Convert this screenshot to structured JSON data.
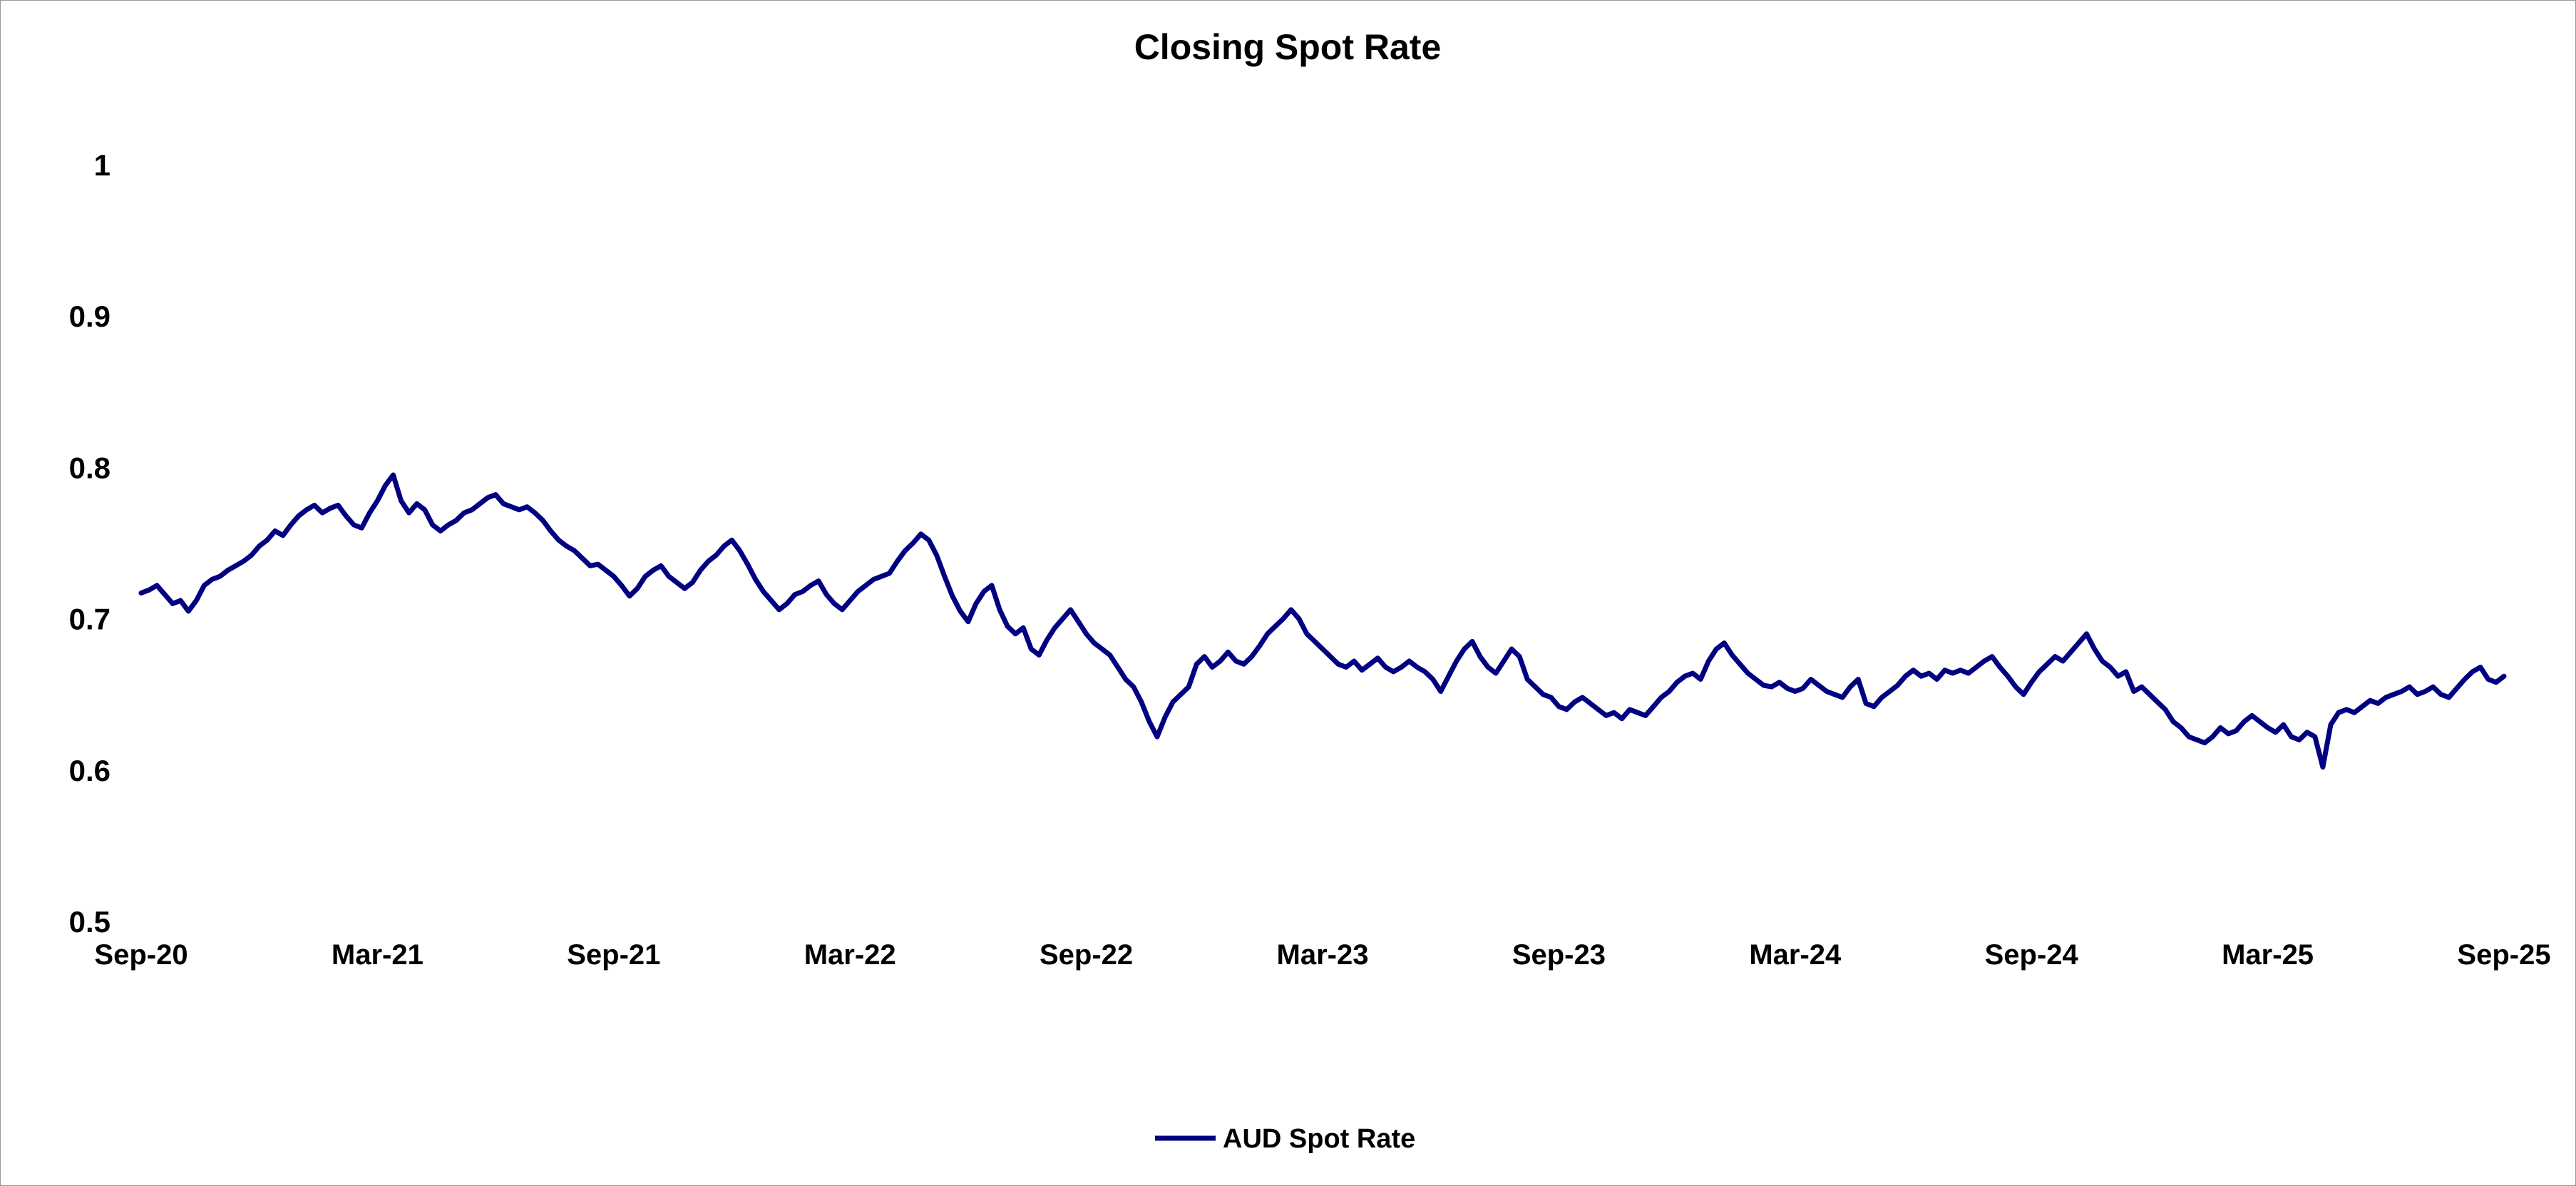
{
  "chart_data": {
    "type": "line",
    "title": "Closing Spot Rate",
    "xlabel": "",
    "ylabel": "",
    "ylim": [
      0.5,
      1.0
    ],
    "yticks": [
      {
        "value": 0.5,
        "label": "0.5"
      },
      {
        "value": 0.6,
        "label": "0.6"
      },
      {
        "value": 0.7,
        "label": "0.7"
      },
      {
        "value": 0.8,
        "label": "0.8"
      },
      {
        "value": 0.9,
        "label": "0.9"
      },
      {
        "value": 1.0,
        "label": "1"
      }
    ],
    "xlim": [
      0,
      60
    ],
    "xticks": [
      {
        "value": 0,
        "label": "Sep-20"
      },
      {
        "value": 6,
        "label": "Mar-21"
      },
      {
        "value": 12,
        "label": "Sep-21"
      },
      {
        "value": 18,
        "label": "Mar-22"
      },
      {
        "value": 24,
        "label": "Sep-22"
      },
      {
        "value": 30,
        "label": "Mar-23"
      },
      {
        "value": 36,
        "label": "Sep-23"
      },
      {
        "value": 42,
        "label": "Mar-24"
      },
      {
        "value": 48,
        "label": "Sep-24"
      },
      {
        "value": 54,
        "label": "Mar-25"
      },
      {
        "value": 60,
        "label": "Sep-25"
      }
    ],
    "legend": {
      "position": "bottom",
      "entries": [
        "AUD Spot Rate"
      ]
    },
    "grid": false,
    "series": [
      {
        "name": "AUD Spot Rate",
        "color": "#000080",
        "x_unit": "months since Sep-20",
        "points": [
          [
            0.0,
            0.717
          ],
          [
            0.2,
            0.719
          ],
          [
            0.4,
            0.722
          ],
          [
            0.6,
            0.716
          ],
          [
            0.8,
            0.71
          ],
          [
            1.0,
            0.712
          ],
          [
            1.2,
            0.705
          ],
          [
            1.4,
            0.712
          ],
          [
            1.6,
            0.722
          ],
          [
            1.8,
            0.726
          ],
          [
            2.0,
            0.728
          ],
          [
            2.2,
            0.732
          ],
          [
            2.4,
            0.735
          ],
          [
            2.6,
            0.738
          ],
          [
            2.8,
            0.742
          ],
          [
            3.0,
            0.748
          ],
          [
            3.2,
            0.752
          ],
          [
            3.4,
            0.758
          ],
          [
            3.6,
            0.755
          ],
          [
            3.8,
            0.762
          ],
          [
            4.0,
            0.768
          ],
          [
            4.2,
            0.772
          ],
          [
            4.4,
            0.775
          ],
          [
            4.6,
            0.77
          ],
          [
            4.8,
            0.773
          ],
          [
            5.0,
            0.775
          ],
          [
            5.2,
            0.768
          ],
          [
            5.4,
            0.762
          ],
          [
            5.6,
            0.76
          ],
          [
            5.8,
            0.77
          ],
          [
            6.0,
            0.778
          ],
          [
            6.2,
            0.788
          ],
          [
            6.4,
            0.795
          ],
          [
            6.6,
            0.778
          ],
          [
            6.8,
            0.77
          ],
          [
            7.0,
            0.776
          ],
          [
            7.2,
            0.772
          ],
          [
            7.4,
            0.762
          ],
          [
            7.6,
            0.758
          ],
          [
            7.8,
            0.762
          ],
          [
            8.0,
            0.765
          ],
          [
            8.2,
            0.77
          ],
          [
            8.4,
            0.772
          ],
          [
            8.6,
            0.776
          ],
          [
            8.8,
            0.78
          ],
          [
            9.0,
            0.782
          ],
          [
            9.2,
            0.776
          ],
          [
            9.4,
            0.774
          ],
          [
            9.6,
            0.772
          ],
          [
            9.8,
            0.774
          ],
          [
            10.0,
            0.77
          ],
          [
            10.2,
            0.765
          ],
          [
            10.4,
            0.758
          ],
          [
            10.6,
            0.752
          ],
          [
            10.8,
            0.748
          ],
          [
            11.0,
            0.745
          ],
          [
            11.2,
            0.74
          ],
          [
            11.4,
            0.735
          ],
          [
            11.6,
            0.736
          ],
          [
            11.8,
            0.732
          ],
          [
            12.0,
            0.728
          ],
          [
            12.2,
            0.722
          ],
          [
            12.4,
            0.715
          ],
          [
            12.6,
            0.72
          ],
          [
            12.8,
            0.728
          ],
          [
            13.0,
            0.732
          ],
          [
            13.2,
            0.735
          ],
          [
            13.4,
            0.728
          ],
          [
            13.6,
            0.724
          ],
          [
            13.8,
            0.72
          ],
          [
            14.0,
            0.724
          ],
          [
            14.2,
            0.732
          ],
          [
            14.4,
            0.738
          ],
          [
            14.6,
            0.742
          ],
          [
            14.8,
            0.748
          ],
          [
            15.0,
            0.752
          ],
          [
            15.2,
            0.745
          ],
          [
            15.4,
            0.736
          ],
          [
            15.6,
            0.726
          ],
          [
            15.8,
            0.718
          ],
          [
            16.0,
            0.712
          ],
          [
            16.2,
            0.706
          ],
          [
            16.4,
            0.71
          ],
          [
            16.6,
            0.716
          ],
          [
            16.8,
            0.718
          ],
          [
            17.0,
            0.722
          ],
          [
            17.2,
            0.725
          ],
          [
            17.4,
            0.716
          ],
          [
            17.6,
            0.71
          ],
          [
            17.8,
            0.706
          ],
          [
            18.0,
            0.712
          ],
          [
            18.2,
            0.718
          ],
          [
            18.4,
            0.722
          ],
          [
            18.6,
            0.726
          ],
          [
            18.8,
            0.728
          ],
          [
            19.0,
            0.73
          ],
          [
            19.2,
            0.738
          ],
          [
            19.4,
            0.745
          ],
          [
            19.6,
            0.75
          ],
          [
            19.8,
            0.756
          ],
          [
            20.0,
            0.752
          ],
          [
            20.2,
            0.742
          ],
          [
            20.4,
            0.728
          ],
          [
            20.6,
            0.715
          ],
          [
            20.8,
            0.705
          ],
          [
            21.0,
            0.698
          ],
          [
            21.2,
            0.71
          ],
          [
            21.4,
            0.718
          ],
          [
            21.6,
            0.722
          ],
          [
            21.8,
            0.706
          ],
          [
            22.0,
            0.695
          ],
          [
            22.2,
            0.69
          ],
          [
            22.4,
            0.694
          ],
          [
            22.6,
            0.68
          ],
          [
            22.8,
            0.676
          ],
          [
            23.0,
            0.686
          ],
          [
            23.2,
            0.694
          ],
          [
            23.4,
            0.7
          ],
          [
            23.6,
            0.706
          ],
          [
            23.8,
            0.698
          ],
          [
            24.0,
            0.69
          ],
          [
            24.2,
            0.684
          ],
          [
            24.4,
            0.68
          ],
          [
            24.6,
            0.676
          ],
          [
            24.8,
            0.668
          ],
          [
            25.0,
            0.66
          ],
          [
            25.2,
            0.655
          ],
          [
            25.4,
            0.645
          ],
          [
            25.6,
            0.632
          ],
          [
            25.8,
            0.622
          ],
          [
            26.0,
            0.635
          ],
          [
            26.2,
            0.645
          ],
          [
            26.4,
            0.65
          ],
          [
            26.6,
            0.655
          ],
          [
            26.8,
            0.67
          ],
          [
            27.0,
            0.675
          ],
          [
            27.2,
            0.668
          ],
          [
            27.4,
            0.672
          ],
          [
            27.6,
            0.678
          ],
          [
            27.8,
            0.672
          ],
          [
            28.0,
            0.67
          ],
          [
            28.2,
            0.675
          ],
          [
            28.4,
            0.682
          ],
          [
            28.6,
            0.69
          ],
          [
            28.8,
            0.695
          ],
          [
            29.0,
            0.7
          ],
          [
            29.2,
            0.706
          ],
          [
            29.4,
            0.7
          ],
          [
            29.6,
            0.69
          ],
          [
            29.8,
            0.685
          ],
          [
            30.0,
            0.68
          ],
          [
            30.2,
            0.675
          ],
          [
            30.4,
            0.67
          ],
          [
            30.6,
            0.668
          ],
          [
            30.8,
            0.672
          ],
          [
            31.0,
            0.666
          ],
          [
            31.2,
            0.67
          ],
          [
            31.4,
            0.674
          ],
          [
            31.6,
            0.668
          ],
          [
            31.8,
            0.665
          ],
          [
            32.0,
            0.668
          ],
          [
            32.2,
            0.672
          ],
          [
            32.4,
            0.668
          ],
          [
            32.6,
            0.665
          ],
          [
            32.8,
            0.66
          ],
          [
            33.0,
            0.652
          ],
          [
            33.2,
            0.662
          ],
          [
            33.4,
            0.672
          ],
          [
            33.6,
            0.68
          ],
          [
            33.8,
            0.685
          ],
          [
            34.0,
            0.675
          ],
          [
            34.2,
            0.668
          ],
          [
            34.4,
            0.664
          ],
          [
            34.6,
            0.672
          ],
          [
            34.8,
            0.68
          ],
          [
            35.0,
            0.675
          ],
          [
            35.2,
            0.66
          ],
          [
            35.4,
            0.655
          ],
          [
            35.6,
            0.65
          ],
          [
            35.8,
            0.648
          ],
          [
            36.0,
            0.642
          ],
          [
            36.2,
            0.64
          ],
          [
            36.4,
            0.645
          ],
          [
            36.6,
            0.648
          ],
          [
            36.8,
            0.644
          ],
          [
            37.0,
            0.64
          ],
          [
            37.2,
            0.636
          ],
          [
            37.4,
            0.638
          ],
          [
            37.6,
            0.634
          ],
          [
            37.8,
            0.64
          ],
          [
            38.0,
            0.638
          ],
          [
            38.2,
            0.636
          ],
          [
            38.4,
            0.642
          ],
          [
            38.6,
            0.648
          ],
          [
            38.8,
            0.652
          ],
          [
            39.0,
            0.658
          ],
          [
            39.2,
            0.662
          ],
          [
            39.4,
            0.664
          ],
          [
            39.6,
            0.66
          ],
          [
            39.8,
            0.672
          ],
          [
            40.0,
            0.68
          ],
          [
            40.2,
            0.684
          ],
          [
            40.4,
            0.676
          ],
          [
            40.6,
            0.67
          ],
          [
            40.8,
            0.664
          ],
          [
            41.0,
            0.66
          ],
          [
            41.2,
            0.656
          ],
          [
            41.4,
            0.655
          ],
          [
            41.6,
            0.658
          ],
          [
            41.8,
            0.654
          ],
          [
            42.0,
            0.652
          ],
          [
            42.2,
            0.654
          ],
          [
            42.4,
            0.66
          ],
          [
            42.6,
            0.656
          ],
          [
            42.8,
            0.652
          ],
          [
            43.0,
            0.65
          ],
          [
            43.2,
            0.648
          ],
          [
            43.4,
            0.655
          ],
          [
            43.6,
            0.66
          ],
          [
            43.8,
            0.644
          ],
          [
            44.0,
            0.642
          ],
          [
            44.2,
            0.648
          ],
          [
            44.4,
            0.652
          ],
          [
            44.6,
            0.656
          ],
          [
            44.8,
            0.662
          ],
          [
            45.0,
            0.666
          ],
          [
            45.2,
            0.662
          ],
          [
            45.4,
            0.664
          ],
          [
            45.6,
            0.66
          ],
          [
            45.8,
            0.666
          ],
          [
            46.0,
            0.664
          ],
          [
            46.2,
            0.666
          ],
          [
            46.4,
            0.664
          ],
          [
            46.6,
            0.668
          ],
          [
            46.8,
            0.672
          ],
          [
            47.0,
            0.675
          ],
          [
            47.2,
            0.668
          ],
          [
            47.4,
            0.662
          ],
          [
            47.6,
            0.655
          ],
          [
            47.8,
            0.65
          ],
          [
            48.0,
            0.658
          ],
          [
            48.2,
            0.665
          ],
          [
            48.4,
            0.67
          ],
          [
            48.6,
            0.675
          ],
          [
            48.8,
            0.672
          ],
          [
            49.0,
            0.678
          ],
          [
            49.2,
            0.684
          ],
          [
            49.4,
            0.69
          ],
          [
            49.6,
            0.68
          ],
          [
            49.8,
            0.672
          ],
          [
            50.0,
            0.668
          ],
          [
            50.2,
            0.662
          ],
          [
            50.4,
            0.665
          ],
          [
            50.6,
            0.652
          ],
          [
            50.8,
            0.655
          ],
          [
            51.0,
            0.65
          ],
          [
            51.2,
            0.645
          ],
          [
            51.4,
            0.64
          ],
          [
            51.6,
            0.632
          ],
          [
            51.8,
            0.628
          ],
          [
            52.0,
            0.622
          ],
          [
            52.2,
            0.62
          ],
          [
            52.4,
            0.618
          ],
          [
            52.6,
            0.622
          ],
          [
            52.8,
            0.628
          ],
          [
            53.0,
            0.624
          ],
          [
            53.2,
            0.626
          ],
          [
            53.4,
            0.632
          ],
          [
            53.6,
            0.636
          ],
          [
            53.8,
            0.632
          ],
          [
            54.0,
            0.628
          ],
          [
            54.2,
            0.625
          ],
          [
            54.4,
            0.63
          ],
          [
            54.6,
            0.622
          ],
          [
            54.8,
            0.62
          ],
          [
            55.0,
            0.625
          ],
          [
            55.2,
            0.622
          ],
          [
            55.4,
            0.602
          ],
          [
            55.6,
            0.63
          ],
          [
            55.8,
            0.638
          ],
          [
            56.0,
            0.64
          ],
          [
            56.2,
            0.638
          ],
          [
            56.4,
            0.642
          ],
          [
            56.6,
            0.646
          ],
          [
            56.8,
            0.644
          ],
          [
            57.0,
            0.648
          ],
          [
            57.2,
            0.65
          ],
          [
            57.4,
            0.652
          ],
          [
            57.6,
            0.655
          ],
          [
            57.8,
            0.65
          ],
          [
            58.0,
            0.652
          ],
          [
            58.2,
            0.655
          ],
          [
            58.4,
            0.65
          ],
          [
            58.6,
            0.648
          ],
          [
            58.8,
            0.654
          ],
          [
            59.0,
            0.66
          ],
          [
            59.2,
            0.665
          ],
          [
            59.4,
            0.668
          ],
          [
            59.6,
            0.66
          ],
          [
            59.8,
            0.658
          ],
          [
            60.0,
            0.662
          ]
        ]
      }
    ]
  }
}
